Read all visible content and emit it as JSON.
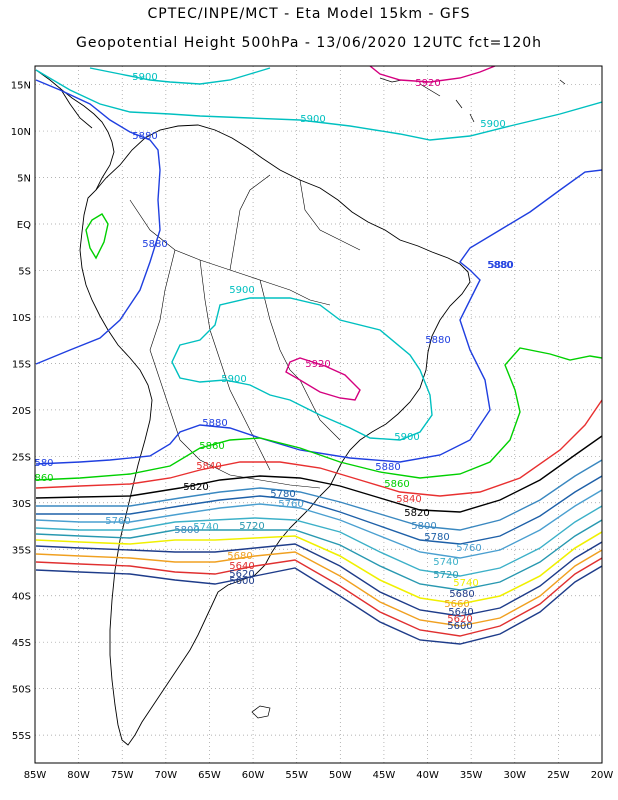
{
  "header": {
    "line1": "CPTEC/INPE/MCT -  Eta Model 15km - GFS",
    "line2": "Geopotential Height 500hPa - 13/06/2020 12UTC fct=120h"
  },
  "map": {
    "lat_labels": [
      "15N",
      "10N",
      "5N",
      "EQ",
      "5S",
      "10S",
      "15S",
      "20S",
      "25S",
      "30S",
      "35S",
      "40S",
      "45S",
      "50S",
      "55S"
    ],
    "lat_values": [
      15,
      10,
      5,
      0,
      -5,
      -10,
      -15,
      -20,
      -25,
      -30,
      -35,
      -40,
      -45,
      -50,
      -55
    ],
    "lon_labels": [
      "85W",
      "80W",
      "75W",
      "70W",
      "65W",
      "60W",
      "55W",
      "50W",
      "45W",
      "40W",
      "35W",
      "30W",
      "25W",
      "20W"
    ],
    "lon_values": [
      -85,
      -80,
      -75,
      -70,
      -65,
      -60,
      -55,
      -50,
      -45,
      -40,
      -35,
      -30,
      -25,
      -20
    ],
    "extent": {
      "lon_min": -85,
      "lon_max": -20,
      "lat_min": -58,
      "lat_max": 17
    },
    "contour_colors": {
      "5920": "#d4007f",
      "5900": "#00c0c0",
      "5880": "#1f3fe0",
      "5860": "#00d000",
      "5840": "#e83030",
      "5820": "#000000",
      "5800": "#3a88c0",
      "5780": "#1e60a8",
      "5760": "#4a9fd0",
      "5740": "#3cb0c8",
      "5720": "#2898b0",
      "5700": "#f0f000",
      "5680": "#f0a020",
      "5660": "#e07000",
      "5640": "#e03030",
      "5620": "#1e3c8a"
    }
  },
  "contour_labels": [
    {
      "text": "5900",
      "color": "#00c0c0"
    },
    {
      "text": "5920",
      "color": "#d4007f"
    },
    {
      "text": "5900",
      "color": "#00c0c0"
    },
    {
      "text": "5900",
      "color": "#00c0c0"
    },
    {
      "text": "5880",
      "color": "#1f3fe0"
    },
    {
      "text": "5880",
      "color": "#1f3fe0"
    },
    {
      "text": "5880",
      "color": "#1f3fe0"
    },
    {
      "text": "5900",
      "color": "#00c0c0"
    },
    {
      "text": "5880",
      "color": "#1f3fe0"
    },
    {
      "text": "5920",
      "color": "#d4007f"
    },
    {
      "text": "5900",
      "color": "#00c0c0"
    },
    {
      "text": "5880",
      "color": "#1f3fe0"
    },
    {
      "text": "5900",
      "color": "#00c0c0"
    },
    {
      "text": "5860",
      "color": "#00d000"
    },
    {
      "text": "5880",
      "color": "#1f3fe0"
    },
    {
      "text": "580",
      "color": "#1f3fe0"
    },
    {
      "text": "5840",
      "color": "#e83030"
    },
    {
      "text": "5860",
      "color": "#00d000"
    },
    {
      "text": "860",
      "color": "#00d000"
    },
    {
      "text": "5820",
      "color": "#000000"
    },
    {
      "text": "5840",
      "color": "#e83030"
    },
    {
      "text": "5780",
      "color": "#1e60a8"
    },
    {
      "text": "5760",
      "color": "#4a9fd0"
    },
    {
      "text": "5820",
      "color": "#000000"
    },
    {
      "text": "5800",
      "color": "#3a88c0"
    },
    {
      "text": "5760",
      "color": "#4a9fd0"
    },
    {
      "text": "5800",
      "color": "#3a88c0"
    },
    {
      "text": "5740",
      "color": "#3cb0c8"
    },
    {
      "text": "5720",
      "color": "#2898b0"
    },
    {
      "text": "5780",
      "color": "#1e60a8"
    },
    {
      "text": "5760",
      "color": "#4a9fd0"
    },
    {
      "text": "5680",
      "color": "#f0a020"
    },
    {
      "text": "5740",
      "color": "#3cb0c8"
    },
    {
      "text": "5720",
      "color": "#2898b0"
    },
    {
      "text": "5640",
      "color": "#e03030"
    },
    {
      "text": "5620",
      "color": "#1e3c8a"
    },
    {
      "text": "5600",
      "color": "#1e3c8a"
    },
    {
      "text": "5740",
      "color": "#f0f000"
    },
    {
      "text": "5680",
      "color": "#1e3c8a"
    },
    {
      "text": "5660",
      "color": "#f0a020"
    },
    {
      "text": "5640",
      "color": "#1e3c8a"
    },
    {
      "text": "5620",
      "color": "#e03030"
    },
    {
      "text": "5600",
      "color": "#1e3c8a"
    },
    {
      "text": "5880",
      "color": "#1f3fe0"
    }
  ]
}
